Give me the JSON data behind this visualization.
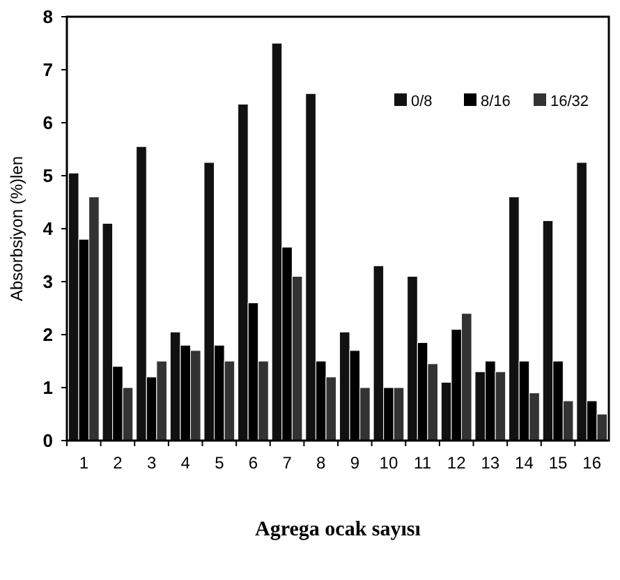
{
  "chart_data": {
    "type": "bar",
    "xlabel": "Agrega ocak sayısı",
    "ylabel": "Absorbsiyon (%)len",
    "categories": [
      "1",
      "2",
      "3",
      "4",
      "5",
      "6",
      "7",
      "8",
      "9",
      "10",
      "11",
      "12",
      "13",
      "14",
      "15",
      "16"
    ],
    "series": [
      {
        "name": "0/8",
        "color": "#111111",
        "values": [
          5.05,
          4.1,
          5.55,
          2.05,
          5.25,
          6.35,
          7.5,
          6.55,
          2.05,
          3.3,
          3.1,
          1.1,
          1.3,
          4.6,
          4.15,
          5.25
        ]
      },
      {
        "name": "8/16",
        "color": "#000000",
        "values": [
          3.8,
          1.4,
          1.2,
          1.8,
          1.8,
          2.6,
          3.65,
          1.5,
          1.7,
          1.0,
          1.85,
          2.1,
          1.5,
          1.5,
          1.5,
          0.75
        ]
      },
      {
        "name": "16/32",
        "color": "#333333",
        "values": [
          4.6,
          1.0,
          1.5,
          1.7,
          1.5,
          1.5,
          3.1,
          1.2,
          1.0,
          1.0,
          1.45,
          2.4,
          1.3,
          0.9,
          0.75,
          0.5
        ]
      }
    ],
    "ylim": [
      0,
      8
    ],
    "yticks": [
      0,
      1,
      2,
      3,
      4,
      5,
      6,
      7,
      8
    ],
    "grid": false,
    "legend": "top right"
  }
}
